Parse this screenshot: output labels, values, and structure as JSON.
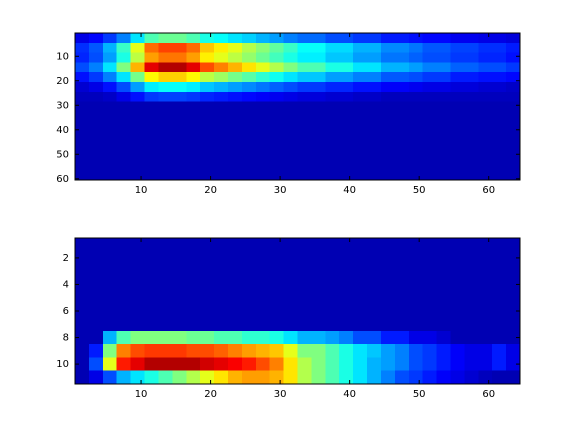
{
  "chart_data": [
    {
      "type": "heatmap",
      "colormap": "jet",
      "clim": [
        0,
        1
      ],
      "ydir": "reverse",
      "xlim": [
        0.5,
        64.5
      ],
      "ylim": [
        0.5,
        60.5
      ],
      "xticks": [
        10,
        20,
        30,
        40,
        50,
        60
      ],
      "yticks": [
        10,
        20,
        30,
        40,
        50,
        60
      ],
      "z": [
        [
          0.1,
          0.13,
          0.18,
          0.25,
          0.35,
          0.45,
          0.48,
          0.48,
          0.45,
          0.4,
          0.38,
          0.35,
          0.33,
          0.3,
          0.28,
          0.25,
          0.23,
          0.23,
          0.2,
          0.2,
          0.18,
          0.18,
          0.15,
          0.15,
          0.14,
          0.13,
          0.13,
          0.11,
          0.11,
          0.1,
          0.1,
          0.09
        ],
        [
          0.17,
          0.21,
          0.3,
          0.43,
          0.6,
          0.77,
          0.81,
          0.81,
          0.77,
          0.68,
          0.64,
          0.6,
          0.55,
          0.51,
          0.47,
          0.43,
          0.38,
          0.38,
          0.34,
          0.34,
          0.3,
          0.3,
          0.26,
          0.26,
          0.24,
          0.21,
          0.21,
          0.19,
          0.19,
          0.17,
          0.17,
          0.15
        ],
        [
          0.16,
          0.2,
          0.28,
          0.4,
          0.56,
          0.72,
          0.76,
          0.76,
          0.72,
          0.64,
          0.6,
          0.56,
          0.52,
          0.48,
          0.44,
          0.4,
          0.36,
          0.36,
          0.32,
          0.32,
          0.28,
          0.28,
          0.24,
          0.24,
          0.22,
          0.2,
          0.2,
          0.18,
          0.18,
          0.16,
          0.16,
          0.14
        ],
        [
          0.2,
          0.25,
          0.35,
          0.5,
          0.7,
          0.9,
          0.95,
          0.95,
          0.9,
          0.8,
          0.75,
          0.7,
          0.65,
          0.6,
          0.55,
          0.5,
          0.45,
          0.45,
          0.4,
          0.4,
          0.35,
          0.35,
          0.3,
          0.3,
          0.28,
          0.25,
          0.25,
          0.22,
          0.22,
          0.2,
          0.2,
          0.18
        ],
        [
          0.14,
          0.18,
          0.25,
          0.35,
          0.49,
          0.63,
          0.67,
          0.67,
          0.63,
          0.56,
          0.53,
          0.49,
          0.46,
          0.42,
          0.39,
          0.35,
          0.32,
          0.32,
          0.28,
          0.28,
          0.25,
          0.25,
          0.21,
          0.21,
          0.2,
          0.18,
          0.18,
          0.15,
          0.15,
          0.14,
          0.14,
          0.13
        ],
        [
          0.08,
          0.1,
          0.14,
          0.2,
          0.28,
          0.36,
          0.38,
          0.38,
          0.36,
          0.32,
          0.3,
          0.28,
          0.26,
          0.24,
          0.22,
          0.2,
          0.18,
          0.18,
          0.16,
          0.16,
          0.14,
          0.14,
          0.12,
          0.12,
          0.11,
          0.1,
          0.1,
          0.09,
          0.09,
          0.08,
          0.08,
          0.07
        ],
        [
          0.06,
          0.06,
          0.07,
          0.1,
          0.14,
          0.18,
          0.19,
          0.19,
          0.18,
          0.16,
          0.15,
          0.14,
          0.13,
          0.12,
          0.11,
          0.1,
          0.09,
          0.09,
          0.08,
          0.08,
          0.07,
          0.07,
          0.06,
          0.06,
          0.06,
          0.06,
          0.06,
          0.06,
          0.06,
          0.06,
          0.06,
          0.06
        ],
        [
          0.05,
          0.05,
          0.05,
          0.05,
          0.05,
          0.05,
          0.05,
          0.05,
          0.05,
          0.05,
          0.05,
          0.05,
          0.05,
          0.05,
          0.05,
          0.05,
          0.05,
          0.05,
          0.05,
          0.05,
          0.05,
          0.05,
          0.05,
          0.05,
          0.05,
          0.05,
          0.05,
          0.05,
          0.05,
          0.05,
          0.05,
          0.05
        ],
        [
          0.05,
          0.05,
          0.05,
          0.05,
          0.05,
          0.05,
          0.05,
          0.05,
          0.05,
          0.05,
          0.05,
          0.05,
          0.05,
          0.05,
          0.05,
          0.05,
          0.05,
          0.05,
          0.05,
          0.05,
          0.05,
          0.05,
          0.05,
          0.05,
          0.05,
          0.05,
          0.05,
          0.05,
          0.05,
          0.05,
          0.05,
          0.05
        ],
        [
          0.05,
          0.05,
          0.05,
          0.05,
          0.05,
          0.05,
          0.05,
          0.05,
          0.05,
          0.05,
          0.05,
          0.05,
          0.05,
          0.05,
          0.05,
          0.05,
          0.05,
          0.05,
          0.05,
          0.05,
          0.05,
          0.05,
          0.05,
          0.05,
          0.05,
          0.05,
          0.05,
          0.05,
          0.05,
          0.05,
          0.05,
          0.05
        ],
        [
          0.05,
          0.05,
          0.05,
          0.05,
          0.05,
          0.05,
          0.05,
          0.05,
          0.05,
          0.05,
          0.05,
          0.05,
          0.05,
          0.05,
          0.05,
          0.05,
          0.05,
          0.05,
          0.05,
          0.05,
          0.05,
          0.05,
          0.05,
          0.05,
          0.05,
          0.05,
          0.05,
          0.05,
          0.05,
          0.05,
          0.05,
          0.05
        ],
        [
          0.05,
          0.05,
          0.05,
          0.05,
          0.05,
          0.05,
          0.05,
          0.05,
          0.05,
          0.05,
          0.05,
          0.05,
          0.05,
          0.05,
          0.05,
          0.05,
          0.05,
          0.05,
          0.05,
          0.05,
          0.05,
          0.05,
          0.05,
          0.05,
          0.05,
          0.05,
          0.05,
          0.05,
          0.05,
          0.05,
          0.05,
          0.05
        ],
        [
          0.05,
          0.05,
          0.05,
          0.05,
          0.05,
          0.05,
          0.05,
          0.05,
          0.05,
          0.05,
          0.05,
          0.05,
          0.05,
          0.05,
          0.05,
          0.05,
          0.05,
          0.05,
          0.05,
          0.05,
          0.05,
          0.05,
          0.05,
          0.05,
          0.05,
          0.05,
          0.05,
          0.05,
          0.05,
          0.05,
          0.05,
          0.05
        ],
        [
          0.05,
          0.05,
          0.05,
          0.05,
          0.05,
          0.05,
          0.05,
          0.05,
          0.05,
          0.05,
          0.05,
          0.05,
          0.05,
          0.05,
          0.05,
          0.05,
          0.05,
          0.05,
          0.05,
          0.05,
          0.05,
          0.05,
          0.05,
          0.05,
          0.05,
          0.05,
          0.05,
          0.05,
          0.05,
          0.05,
          0.05,
          0.05
        ],
        [
          0.05,
          0.05,
          0.05,
          0.05,
          0.05,
          0.05,
          0.05,
          0.05,
          0.05,
          0.05,
          0.05,
          0.05,
          0.05,
          0.05,
          0.05,
          0.05,
          0.05,
          0.05,
          0.05,
          0.05,
          0.05,
          0.05,
          0.05,
          0.05,
          0.05,
          0.05,
          0.05,
          0.05,
          0.05,
          0.05,
          0.05,
          0.05
        ]
      ]
    },
    {
      "type": "heatmap",
      "colormap": "jet",
      "clim": [
        0,
        1
      ],
      "ydir": "reverse",
      "xlim": [
        0.5,
        64.5
      ],
      "ylim": [
        0.5,
        11.5
      ],
      "xticks": [
        10,
        20,
        30,
        40,
        50,
        60
      ],
      "yticks": [
        2,
        4,
        6,
        8,
        10
      ],
      "z": [
        [
          0.05,
          0.05,
          0.05,
          0.05,
          0.05,
          0.05,
          0.05,
          0.05,
          0.05,
          0.05,
          0.05,
          0.05,
          0.05,
          0.05,
          0.05,
          0.05,
          0.05,
          0.05,
          0.05,
          0.05,
          0.05,
          0.05,
          0.05,
          0.05,
          0.05,
          0.05,
          0.05,
          0.05,
          0.05,
          0.05,
          0.05,
          0.05
        ],
        [
          0.05,
          0.05,
          0.05,
          0.05,
          0.05,
          0.05,
          0.05,
          0.05,
          0.05,
          0.05,
          0.05,
          0.05,
          0.05,
          0.05,
          0.05,
          0.05,
          0.05,
          0.05,
          0.05,
          0.05,
          0.05,
          0.05,
          0.05,
          0.05,
          0.05,
          0.05,
          0.05,
          0.05,
          0.05,
          0.05,
          0.05,
          0.05
        ],
        [
          0.05,
          0.05,
          0.05,
          0.05,
          0.05,
          0.05,
          0.05,
          0.05,
          0.05,
          0.05,
          0.05,
          0.05,
          0.05,
          0.05,
          0.05,
          0.05,
          0.05,
          0.05,
          0.05,
          0.05,
          0.05,
          0.05,
          0.05,
          0.05,
          0.05,
          0.05,
          0.05,
          0.05,
          0.05,
          0.05,
          0.05,
          0.05
        ],
        [
          0.05,
          0.05,
          0.05,
          0.05,
          0.05,
          0.05,
          0.05,
          0.05,
          0.05,
          0.05,
          0.05,
          0.05,
          0.05,
          0.05,
          0.05,
          0.05,
          0.05,
          0.05,
          0.05,
          0.05,
          0.05,
          0.05,
          0.05,
          0.05,
          0.05,
          0.05,
          0.05,
          0.05,
          0.05,
          0.05,
          0.05,
          0.05
        ],
        [
          0.05,
          0.05,
          0.05,
          0.05,
          0.05,
          0.05,
          0.05,
          0.05,
          0.05,
          0.05,
          0.05,
          0.05,
          0.05,
          0.05,
          0.05,
          0.05,
          0.05,
          0.05,
          0.05,
          0.05,
          0.05,
          0.05,
          0.05,
          0.05,
          0.05,
          0.05,
          0.05,
          0.05,
          0.05,
          0.05,
          0.05,
          0.05
        ],
        [
          0.05,
          0.05,
          0.05,
          0.05,
          0.05,
          0.05,
          0.05,
          0.05,
          0.05,
          0.05,
          0.05,
          0.05,
          0.05,
          0.05,
          0.05,
          0.05,
          0.05,
          0.05,
          0.05,
          0.05,
          0.05,
          0.05,
          0.05,
          0.05,
          0.05,
          0.05,
          0.05,
          0.05,
          0.05,
          0.05,
          0.05,
          0.05
        ],
        [
          0.05,
          0.05,
          0.05,
          0.05,
          0.05,
          0.05,
          0.05,
          0.05,
          0.05,
          0.05,
          0.05,
          0.05,
          0.05,
          0.05,
          0.05,
          0.05,
          0.05,
          0.05,
          0.05,
          0.05,
          0.05,
          0.05,
          0.05,
          0.05,
          0.05,
          0.05,
          0.05,
          0.05,
          0.05,
          0.05,
          0.05,
          0.05
        ],
        [
          0.05,
          0.05,
          0.3,
          0.45,
          0.5,
          0.5,
          0.5,
          0.5,
          0.48,
          0.48,
          0.45,
          0.45,
          0.42,
          0.42,
          0.4,
          0.35,
          0.3,
          0.3,
          0.28,
          0.25,
          0.2,
          0.2,
          0.15,
          0.15,
          0.1,
          0.1,
          0.08,
          0.05,
          0.05,
          0.05,
          0.05,
          0.05
        ],
        [
          0.05,
          0.15,
          0.5,
          0.75,
          0.8,
          0.82,
          0.82,
          0.82,
          0.8,
          0.8,
          0.78,
          0.75,
          0.72,
          0.7,
          0.68,
          0.6,
          0.5,
          0.5,
          0.45,
          0.4,
          0.35,
          0.32,
          0.28,
          0.25,
          0.2,
          0.18,
          0.15,
          0.12,
          0.1,
          0.1,
          0.15,
          0.1
        ],
        [
          0.05,
          0.2,
          0.6,
          0.85,
          0.9,
          0.95,
          0.95,
          0.95,
          0.95,
          0.92,
          0.9,
          0.88,
          0.85,
          0.8,
          0.75,
          0.65,
          0.55,
          0.5,
          0.45,
          0.4,
          0.35,
          0.3,
          0.28,
          0.25,
          0.2,
          0.18,
          0.15,
          0.12,
          0.1,
          0.1,
          0.15,
          0.1
        ],
        [
          0.05,
          0.1,
          0.2,
          0.3,
          0.35,
          0.4,
          0.45,
          0.5,
          0.55,
          0.6,
          0.65,
          0.7,
          0.72,
          0.72,
          0.7,
          0.65,
          0.55,
          0.5,
          0.45,
          0.4,
          0.35,
          0.3,
          0.25,
          0.2,
          0.18,
          0.15,
          0.12,
          0.1,
          0.08,
          0.06,
          0.05,
          0.05
        ]
      ]
    }
  ]
}
